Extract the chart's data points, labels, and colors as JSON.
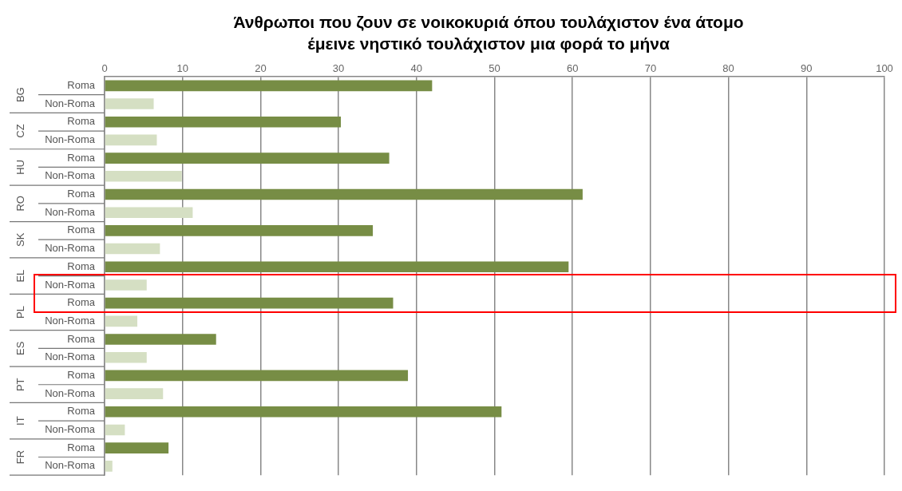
{
  "chart_data": {
    "type": "bar",
    "orientation": "horizontal",
    "title": "Άνθρωποι που ζουν σε νοικοκυριά όπου τουλάχιστον ένα άτομο έμεινε νηστικό τουλάχιστον μια φορά το μήνα",
    "categories": [
      "Roma",
      "Non-Roma",
      "Roma",
      "Non-Roma",
      "Roma",
      "Non-Roma",
      "Roma",
      "Non-Roma",
      "Roma",
      "Non-Roma",
      "Roma",
      "Non-Roma",
      "Roma",
      "Non-Roma",
      "Roma",
      "Non-Roma",
      "Roma",
      "Non-Roma",
      "Roma",
      "Non-Roma",
      "Roma",
      "Non-Roma"
    ],
    "values": [
      42,
      6.3,
      30.3,
      6.7,
      36.5,
      9.9,
      61.3,
      11.3,
      34.4,
      7.1,
      59.5,
      5.4,
      37,
      4.2,
      14.3,
      5.4,
      38.9,
      7.5,
      50.9,
      2.6,
      8.2,
      1
    ],
    "colors": [
      "#778d45",
      "#d5dfc3",
      "#778d45",
      "#d5dfc3",
      "#778d45",
      "#d5dfc3",
      "#778d45",
      "#d5dfc3",
      "#778d45",
      "#d5dfc3",
      "#778d45",
      "#d5dfc3",
      "#778d45",
      "#d5dfc3",
      "#778d45",
      "#d5dfc3",
      "#778d45",
      "#d5dfc3",
      "#778d45",
      "#d5dfc3",
      "#778d45",
      "#d5dfc3"
    ],
    "xlim": [
      0,
      100
    ],
    "xticks": [
      0,
      10,
      20,
      30,
      40,
      50,
      60,
      70,
      80,
      90,
      100
    ],
    "annotations": [
      "BG",
      "CZ",
      "HU",
      "RO",
      "SK",
      "EL",
      "PL",
      "ES",
      "PT",
      "IT",
      "FR"
    ],
    "grid": "x",
    "legend": false
  }
}
